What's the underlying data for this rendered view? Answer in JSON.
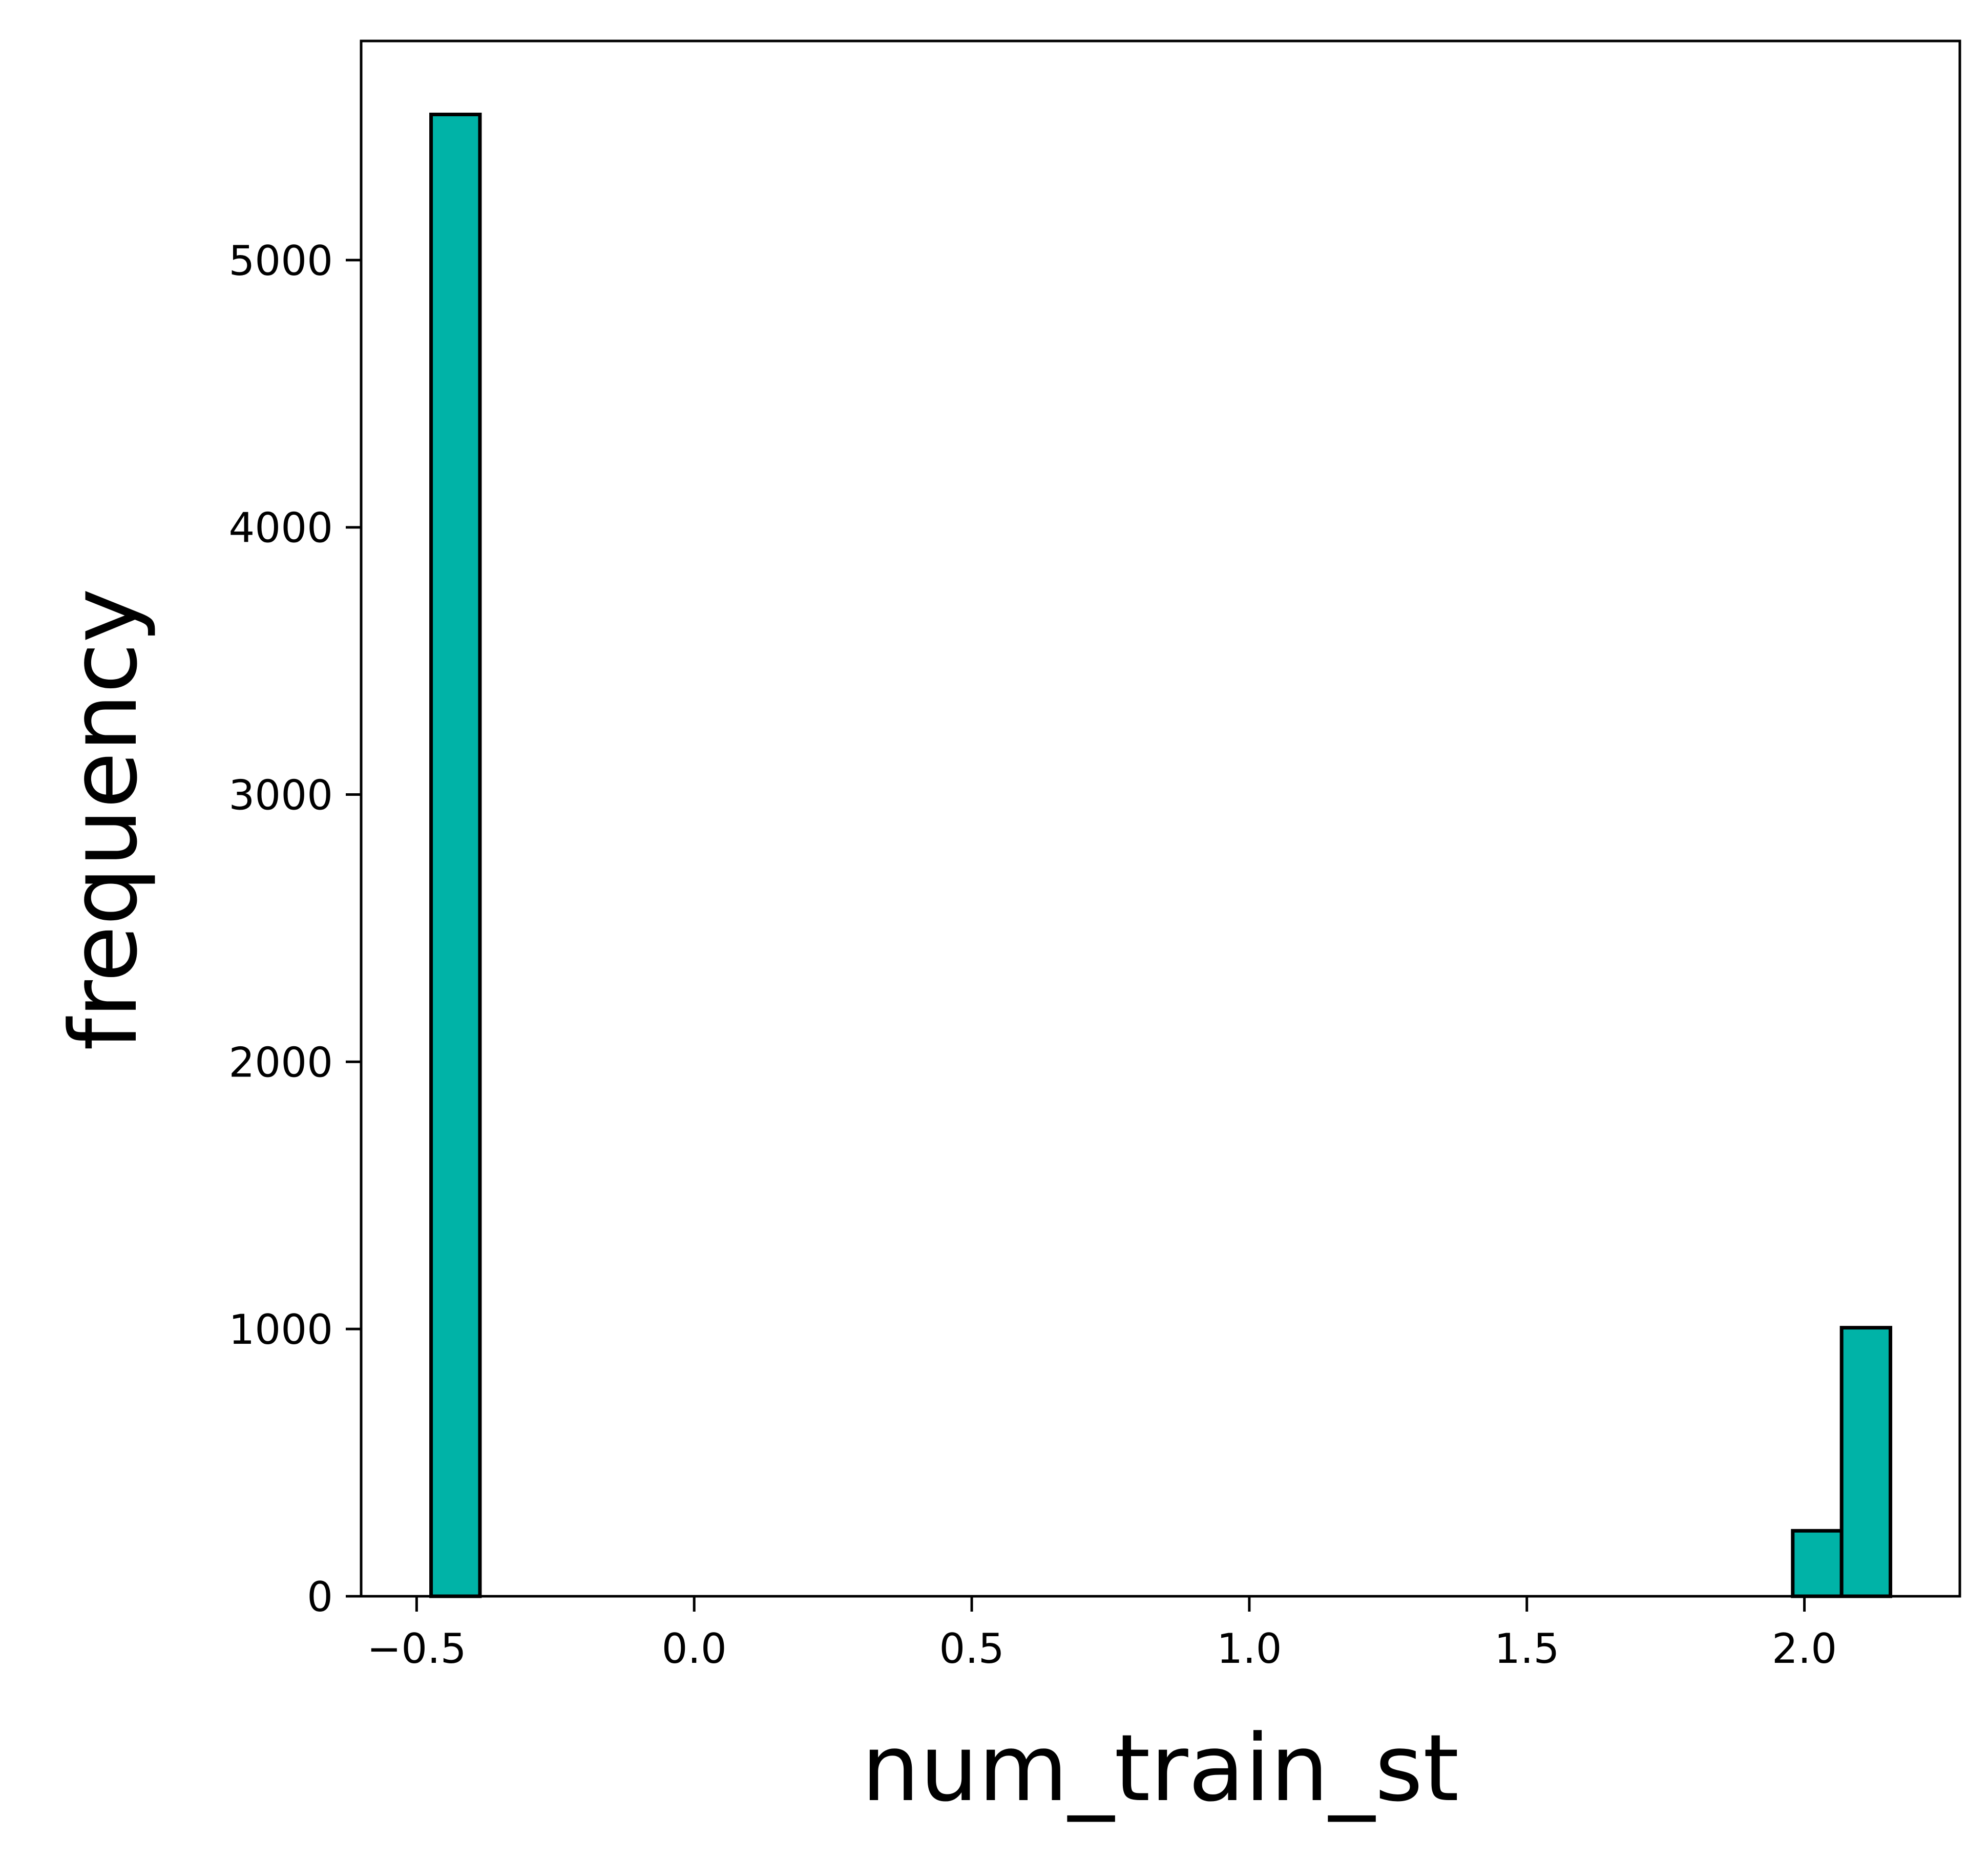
{
  "chart_data": {
    "type": "bar",
    "title": "",
    "xlabel": "num_train_st",
    "ylabel": "frequency",
    "xlim": [
      -0.6,
      2.28
    ],
    "ylim": [
      0,
      5820
    ],
    "xticks": [
      -0.5,
      0.0,
      0.5,
      1.0,
      1.5,
      2.0
    ],
    "xtick_labels": [
      "−0.5",
      "0.0",
      "0.5",
      "1.0",
      "1.5",
      "2.0"
    ],
    "yticks": [
      0,
      1000,
      2000,
      3000,
      4000,
      5000
    ],
    "ytick_labels": [
      "0",
      "1000",
      "2000",
      "3000",
      "4000",
      "5000"
    ],
    "bins": [
      {
        "x0": -0.474,
        "x1": -0.386,
        "value": 5545
      },
      {
        "x0": 1.979,
        "x1": 2.067,
        "value": 245
      },
      {
        "x0": 2.067,
        "x1": 2.155,
        "value": 1005
      }
    ],
    "bar_color": "#00b3a7",
    "edge_color": "#000000",
    "grid": false,
    "legend": "none"
  }
}
